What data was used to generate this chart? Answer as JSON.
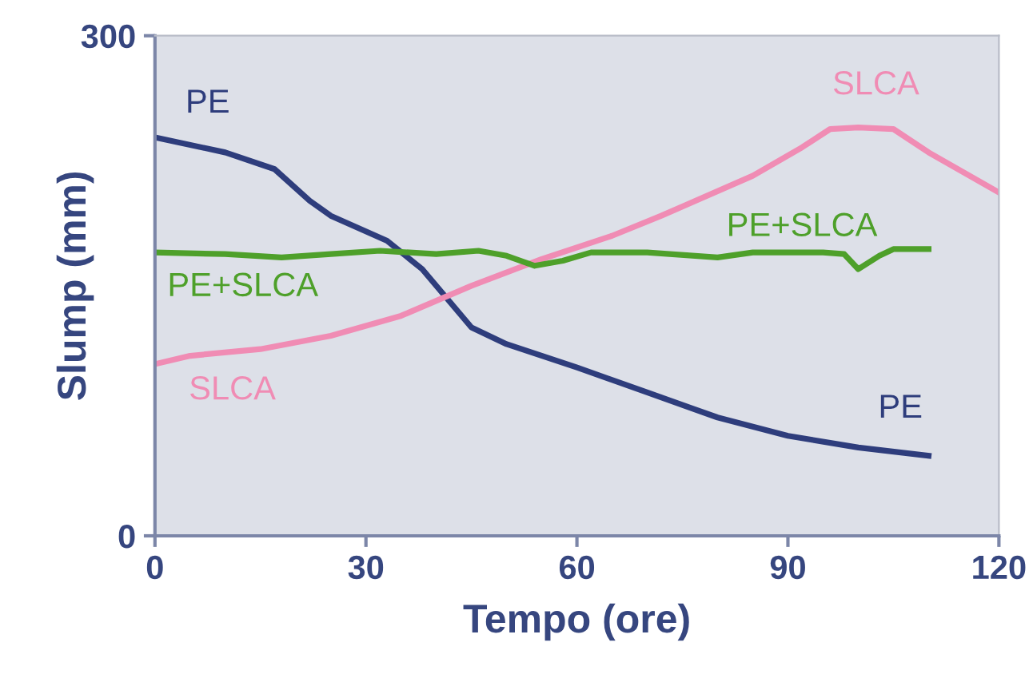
{
  "chart_data": {
    "type": "line",
    "xlabel": "Tempo (ore)",
    "ylabel": "Slump (mm)",
    "xlim": [
      0,
      120
    ],
    "ylim": [
      0,
      300
    ],
    "xticks": [
      0,
      30,
      60,
      90,
      120
    ],
    "yticks": [
      0,
      300
    ],
    "grid": false,
    "legend": false,
    "marker": "none",
    "line_style": "solid",
    "series": [
      {
        "name": "PE",
        "color": "#2e3d7c",
        "x": [
          0,
          10,
          17,
          22,
          25,
          33,
          38,
          45,
          50,
          60,
          70,
          80,
          90,
          100,
          110
        ],
        "values": [
          239,
          230,
          220,
          201,
          192,
          177,
          160,
          125,
          115,
          101,
          86,
          71,
          60,
          53,
          48
        ]
      },
      {
        "name": "SLCA",
        "color": "#f08cb4",
        "x": [
          0,
          5,
          15,
          25,
          35,
          45,
          55,
          65,
          72,
          85,
          92,
          96,
          100,
          105,
          110,
          120
        ],
        "values": [
          103,
          108,
          112,
          120,
          132,
          150,
          166,
          180,
          192,
          216,
          233,
          244,
          245,
          244,
          230,
          206
        ]
      },
      {
        "name": "PE+SLCA",
        "color": "#4ea02a",
        "x": [
          0,
          10,
          18,
          25,
          32,
          40,
          46,
          50,
          54,
          58,
          62,
          70,
          80,
          85,
          95,
          98,
          100,
          103,
          105,
          110
        ],
        "values": [
          170,
          169,
          167,
          169,
          171,
          169,
          171,
          168,
          162,
          165,
          170,
          170,
          167,
          170,
          170,
          169,
          160,
          168,
          172,
          172
        ]
      }
    ]
  }
}
